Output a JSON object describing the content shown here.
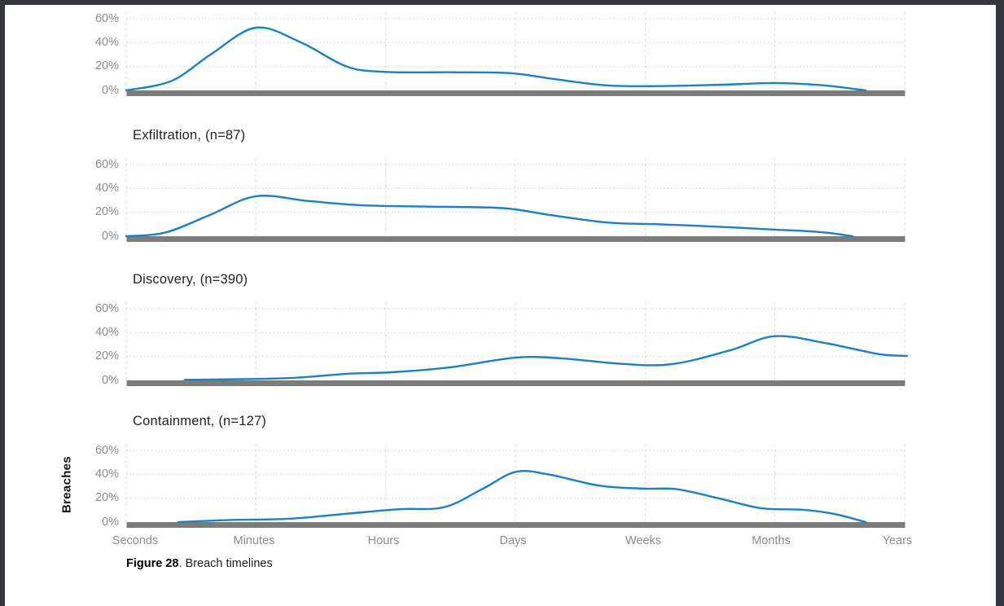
{
  "page": {
    "background_color": "#ffffff",
    "frame_color": "#34373b"
  },
  "chart_data": {
    "type": "line",
    "subtype": "smoothed-density-small-multiples",
    "x_categories": [
      "Seconds",
      "Minutes",
      "Hours",
      "Days",
      "Weeks",
      "Months",
      "Years"
    ],
    "ytick_labels": [
      "60%",
      "40%",
      "20%",
      "0%"
    ],
    "ylabel": "Breaches",
    "ylim": [
      0,
      60
    ],
    "grid": "dashed vertical line at each x category, dotted horizontal lines at 20/40/60%",
    "legend_position": "none",
    "accent_color": "#1b80c4",
    "baseline_color": "#7c7c7c",
    "gridline_color": "#d8d8d8",
    "panels": [
      {
        "title": "",
        "points": [
          [
            0.0,
            0
          ],
          [
            0.35,
            8
          ],
          [
            0.65,
            30
          ],
          [
            1.0,
            52.5
          ],
          [
            1.35,
            40
          ],
          [
            1.7,
            20
          ],
          [
            2.0,
            15.5
          ],
          [
            2.5,
            15.2
          ],
          [
            2.95,
            14.5
          ],
          [
            3.3,
            9.5
          ],
          [
            3.7,
            4.2
          ],
          [
            4.1,
            3.6
          ],
          [
            4.6,
            4.8
          ],
          [
            5.0,
            6.2
          ],
          [
            5.35,
            4.5
          ],
          [
            5.7,
            0
          ]
        ]
      },
      {
        "title": "Exfiltration, (n=87)",
        "points": [
          [
            0.0,
            0
          ],
          [
            0.3,
            3
          ],
          [
            0.65,
            18
          ],
          [
            1.0,
            33.5
          ],
          [
            1.4,
            29.5
          ],
          [
            1.8,
            26
          ],
          [
            2.3,
            24.8
          ],
          [
            2.9,
            23.5
          ],
          [
            3.25,
            18
          ],
          [
            3.7,
            11.5
          ],
          [
            4.1,
            10
          ],
          [
            4.55,
            8
          ],
          [
            5.0,
            5.5
          ],
          [
            5.35,
            3.5
          ],
          [
            5.6,
            0
          ]
        ]
      },
      {
        "title": "Discovery, (n=390)",
        "points": [
          [
            0.45,
            0.5
          ],
          [
            0.9,
            1
          ],
          [
            1.3,
            2.2
          ],
          [
            1.7,
            5.5
          ],
          [
            2.05,
            6.8
          ],
          [
            2.5,
            11
          ],
          [
            3.0,
            19
          ],
          [
            3.35,
            18.5
          ],
          [
            3.8,
            14
          ],
          [
            4.2,
            13.5
          ],
          [
            4.65,
            25
          ],
          [
            5.0,
            37
          ],
          [
            5.4,
            31
          ],
          [
            5.8,
            22
          ],
          [
            6.02,
            20.5
          ]
        ]
      },
      {
        "title": "Containment, (n=127)",
        "points": [
          [
            0.4,
            0
          ],
          [
            0.8,
            1.8
          ],
          [
            1.25,
            2.8
          ],
          [
            1.7,
            7
          ],
          [
            2.1,
            10.8
          ],
          [
            2.45,
            12.5
          ],
          [
            2.75,
            28
          ],
          [
            3.0,
            42
          ],
          [
            3.25,
            40
          ],
          [
            3.65,
            30.5
          ],
          [
            4.0,
            28
          ],
          [
            4.25,
            27.5
          ],
          [
            4.6,
            19
          ],
          [
            4.9,
            11.5
          ],
          [
            5.2,
            10.4
          ],
          [
            5.45,
            7
          ],
          [
            5.7,
            0
          ]
        ]
      }
    ]
  },
  "caption": {
    "label": "Figure 28",
    "text": ". Breach timelines"
  }
}
